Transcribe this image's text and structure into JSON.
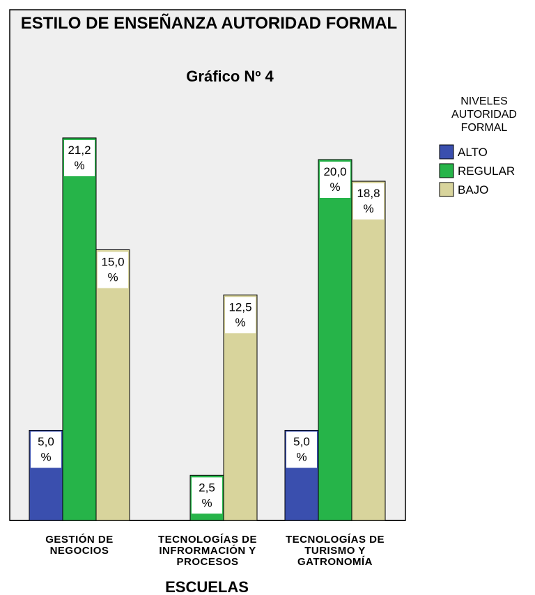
{
  "chart_data": {
    "type": "bar",
    "title": "ESTILO DE ENSEÑANZA AUTORIDAD FORMAL",
    "subtitle": "Gráfico Nº 4",
    "xlabel": "ESCUELAS",
    "ylabel": "",
    "ylim": [
      0,
      25
    ],
    "grid": false,
    "legend_position": "right",
    "categories": [
      [
        "GESTIÓN DE",
        "NEGOCIOS"
      ],
      [
        "TECNOLOGÍAS DE",
        "INFRORMACIÓN Y",
        "PROCESOS"
      ],
      [
        "TECNOLOGÍAS DE",
        "TURISMO Y",
        "GATRONOMÍA"
      ]
    ],
    "legend_title": [
      "NIVELES",
      "AUTORIDAD",
      "FORMAL"
    ],
    "series": [
      {
        "name": "ALTO",
        "color": "#3a4fae",
        "values": [
          5.0,
          null,
          5.0
        ],
        "labels": [
          [
            "5,0",
            "%"
          ],
          null,
          [
            "5,0",
            "%"
          ]
        ]
      },
      {
        "name": "REGULAR",
        "color": "#26b449",
        "values": [
          21.2,
          2.5,
          20.0
        ],
        "labels": [
          [
            "21,2",
            "%"
          ],
          [
            "2,5",
            "%"
          ],
          [
            "20,0",
            "%"
          ]
        ]
      },
      {
        "name": "BAJO",
        "color": "#d8d49c",
        "values": [
          15.0,
          12.5,
          18.8
        ],
        "labels": [
          [
            "15,0",
            "%"
          ],
          [
            "12,5",
            "%"
          ],
          [
            "18,8",
            "%"
          ]
        ]
      }
    ]
  }
}
